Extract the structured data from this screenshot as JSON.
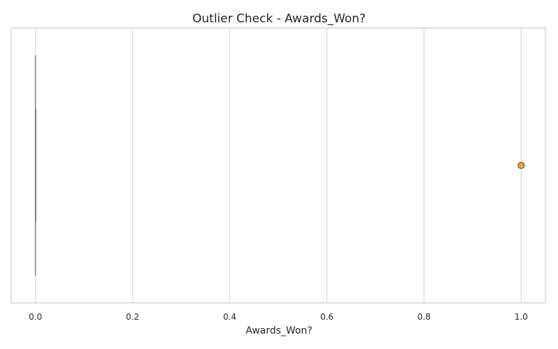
{
  "chart_data": {
    "type": "box",
    "title": "Outlier Check - Awards_Won?",
    "xlabel": "Awards_Won?",
    "ylabel": "",
    "xlim": [
      -0.05,
      1.05
    ],
    "x_ticks": [
      "0.0",
      "0.2",
      "0.4",
      "0.6",
      "0.8",
      "1.0"
    ],
    "x_tick_values": [
      0.0,
      0.2,
      0.4,
      0.6,
      0.8,
      1.0
    ],
    "grid": "vertical",
    "orientation": "horizontal",
    "box": {
      "min": 0.0,
      "q1": 0.0,
      "median": 0.0,
      "q3": 0.0,
      "max": 0.0
    },
    "outliers": [
      1.0
    ],
    "colors": {
      "box_line": "#808080",
      "outlier_fill": "#f5a623",
      "outlier_edge": "#5a5a5a",
      "grid": "#d9d9d9",
      "frame": "#cccccc"
    }
  }
}
